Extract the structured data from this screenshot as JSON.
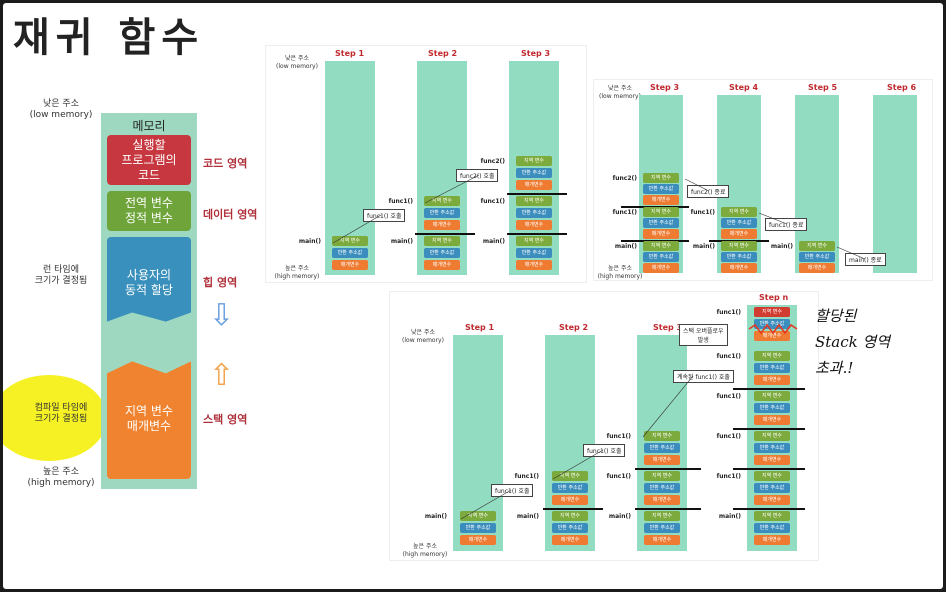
{
  "title": "재귀 함수",
  "memory": {
    "low_addr": "낮은 주소\n(low memory)",
    "high_addr": "높은 주소\n(high memory)",
    "box_title": "메모리",
    "segments": [
      {
        "text": "실행할\n프로그램의\n코드",
        "label": "코드 영역"
      },
      {
        "text": "전역 변수\n정적 변수",
        "label": "데이터 영역"
      },
      {
        "text": "사용자의\n동적 할당",
        "label": "힙 영역"
      },
      {
        "text": "지역 변수\n매개변수",
        "label": "스택 영역"
      }
    ],
    "runtime_note": "런 타임에\n크기가 결정됨",
    "compile_note": "컴파일 타임에\n크기가 결정됨"
  },
  "stack": {
    "low": "낮은 주소\n(low memory)",
    "high": "높은 주소\n(high memory)",
    "frame": [
      "지역 변수",
      "반환 주소값",
      "매개변수"
    ],
    "main": "main()",
    "func1": "func1()",
    "func2": "func2()",
    "panel_a": {
      "steps": [
        "Step 1",
        "Step 2",
        "Step 3"
      ],
      "call1": "func1() 호출",
      "call2": "func2() 호출"
    },
    "panel_b": {
      "steps": [
        "Step 3",
        "Step 4",
        "Step 5",
        "Step 6"
      ],
      "end2": "func2() 종료",
      "end1": "func1() 종료",
      "endmain": "main() 종료"
    },
    "panel_c": {
      "steps": [
        "Step 1",
        "Step 2",
        "Step 3",
        "Step n"
      ],
      "call1": "func1() 호출",
      "repeat": "계속된 func1() 호출",
      "overflow": "스택 오버플로우\n발생"
    }
  },
  "handwriting": "할당된\nStack 영역\n초과.!",
  "colors": {
    "teal": "#92dcc2",
    "green": "#7daa3c",
    "blue": "#3a8dbd",
    "orange": "#ef7b33",
    "red": "#d23b30"
  }
}
